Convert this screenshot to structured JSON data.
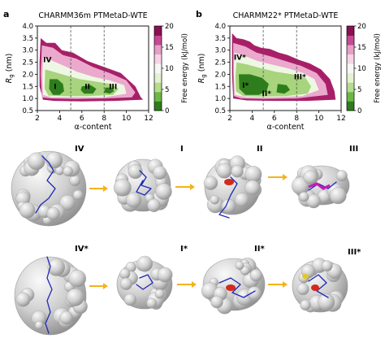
{
  "chart_data": [
    {
      "type": "heatmap",
      "panel_letter": "a",
      "title": "CHARMM36m PTMetaD-WTE",
      "xlabel": "α-content",
      "ylabel_main": "R",
      "ylabel_sub": "g",
      "ylabel_unit": " (nm)",
      "xlim": [
        2,
        12
      ],
      "ylim": [
        0.5,
        4.0
      ],
      "xticks": [
        "2",
        "4",
        "6",
        "8",
        "10",
        "12"
      ],
      "yticks": [
        "0.5",
        "1.0",
        "1.5",
        "2.0",
        "2.5",
        "3.0",
        "3.5",
        "4.0"
      ],
      "dashed_x": [
        5,
        8
      ],
      "state_labels": [
        {
          "text": "IV",
          "x": 2.9,
          "y": 2.5
        },
        {
          "text": "I",
          "x": 3.6,
          "y": 1.4
        },
        {
          "text": "II",
          "x": 6.5,
          "y": 1.4
        },
        {
          "text": "III",
          "x": 8.8,
          "y": 1.4
        }
      ],
      "contours": [
        {
          "level": 20,
          "points": [
            [
              2.3,
              3.5
            ],
            [
              2.8,
              3.3
            ],
            [
              3.6,
              3.3
            ],
            [
              4.2,
              3.0
            ],
            [
              5.2,
              2.9
            ],
            [
              6.5,
              2.55
            ],
            [
              8,
              2.3
            ],
            [
              9.5,
              2.05
            ],
            [
              10.8,
              1.5
            ],
            [
              11.3,
              1.05
            ],
            [
              11.5,
              0.95
            ],
            [
              9,
              0.9
            ],
            [
              6,
              0.88
            ],
            [
              3.5,
              0.9
            ],
            [
              2.5,
              0.95
            ],
            [
              2.2,
              1.5
            ],
            [
              2.2,
              2.5
            ]
          ]
        },
        {
          "level": 15,
          "points": [
            [
              2.4,
              3.2
            ],
            [
              3.4,
              3.1
            ],
            [
              4.3,
              2.8
            ],
            [
              5.5,
              2.65
            ],
            [
              7,
              2.3
            ],
            [
              8.5,
              2.05
            ],
            [
              10,
              1.75
            ],
            [
              10.8,
              1.25
            ],
            [
              10.5,
              1.05
            ],
            [
              8,
              1.0
            ],
            [
              5.5,
              0.98
            ],
            [
              3.2,
              1.0
            ],
            [
              2.4,
              1.05
            ],
            [
              2.3,
              2.0
            ]
          ]
        },
        {
          "level": 10,
          "points": [
            [
              2.5,
              2.7
            ],
            [
              3.4,
              2.55
            ],
            [
              4.4,
              2.35
            ],
            [
              5.6,
              2.1
            ],
            [
              7,
              1.9
            ],
            [
              8.5,
              1.75
            ],
            [
              9.8,
              1.55
            ],
            [
              10,
              1.2
            ],
            [
              8,
              1.05
            ],
            [
              5.5,
              1.05
            ],
            [
              3.3,
              1.05
            ],
            [
              2.5,
              1.15
            ],
            [
              2.45,
              1.9
            ]
          ]
        },
        {
          "level": 5,
          "points": [
            [
              2.7,
              2.2
            ],
            [
              3.5,
              2.1
            ],
            [
              4.6,
              1.95
            ],
            [
              5.8,
              1.8
            ],
            [
              7.2,
              1.7
            ],
            [
              8.6,
              1.6
            ],
            [
              9.3,
              1.4
            ],
            [
              8.8,
              1.15
            ],
            [
              6.5,
              1.1
            ],
            [
              4.5,
              1.1
            ],
            [
              3.0,
              1.12
            ],
            [
              2.65,
              1.4
            ]
          ]
        },
        {
          "level": 0,
          "points": [
            [
              3.1,
              1.8
            ],
            [
              3.8,
              1.8
            ],
            [
              4.3,
              1.6
            ],
            [
              4.4,
              1.3
            ],
            [
              4.0,
              1.15
            ],
            [
              3.4,
              1.15
            ],
            [
              3.05,
              1.4
            ]
          ]
        },
        {
          "level": 0,
          "points": [
            [
              6.0,
              1.5
            ],
            [
              6.8,
              1.55
            ],
            [
              7.3,
              1.4
            ],
            [
              7.0,
              1.2
            ],
            [
              6.2,
              1.2
            ],
            [
              5.9,
              1.35
            ]
          ]
        },
        {
          "level": 0,
          "points": [
            [
              8.1,
              1.45
            ],
            [
              8.7,
              1.45
            ],
            [
              8.9,
              1.3
            ],
            [
              8.5,
              1.2
            ],
            [
              8.0,
              1.25
            ]
          ]
        }
      ],
      "colorbar": {
        "label": "Free energy (kJ/mol)",
        "ticks": [
          "0",
          "5",
          "10",
          "15",
          "20"
        ]
      }
    },
    {
      "type": "heatmap",
      "panel_letter": "b",
      "title": "CHARMM22* PTMetaD-WTE",
      "xlabel": "α-content",
      "ylabel_main": "R",
      "ylabel_sub": "g",
      "ylabel_unit": " (nm)",
      "xlim": [
        2,
        12
      ],
      "ylim": [
        0.5,
        4.0
      ],
      "xticks": [
        "2",
        "4",
        "6",
        "8",
        "10",
        "12"
      ],
      "yticks": [
        "0.5",
        "1.0",
        "1.5",
        "2.0",
        "2.5",
        "3.0",
        "3.5",
        "4.0"
      ],
      "dashed_x": [
        5,
        8
      ],
      "state_labels": [
        {
          "text": "IV*",
          "x": 2.9,
          "y": 2.6
        },
        {
          "text": "I*",
          "x": 3.4,
          "y": 1.45
        },
        {
          "text": "II*",
          "x": 5.3,
          "y": 1.1
        },
        {
          "text": "III*",
          "x": 8.3,
          "y": 1.8
        }
      ],
      "contours": [
        {
          "level": 20,
          "points": [
            [
              2.2,
              3.7
            ],
            [
              2.6,
              3.5
            ],
            [
              3.2,
              3.45
            ],
            [
              3.8,
              3.35
            ],
            [
              4.2,
              3.2
            ],
            [
              4.8,
              3.1
            ],
            [
              5.6,
              3.05
            ],
            [
              6.4,
              2.9
            ],
            [
              7.2,
              2.8
            ],
            [
              8.2,
              2.6
            ],
            [
              9.2,
              2.45
            ],
            [
              10.2,
              2.2
            ],
            [
              11.0,
              1.8
            ],
            [
              11.4,
              1.3
            ],
            [
              11.5,
              0.95
            ],
            [
              9,
              0.9
            ],
            [
              6,
              0.9
            ],
            [
              3.5,
              0.92
            ],
            [
              2.3,
              1.0
            ],
            [
              2.2,
              2.0
            ]
          ]
        },
        {
          "level": 15,
          "points": [
            [
              2.3,
              3.3
            ],
            [
              3.4,
              3.15
            ],
            [
              4.4,
              2.9
            ],
            [
              5.6,
              2.75
            ],
            [
              7,
              2.55
            ],
            [
              8.4,
              2.35
            ],
            [
              9.8,
              2.05
            ],
            [
              10.6,
              1.6
            ],
            [
              10.8,
              1.15
            ],
            [
              8,
              1.0
            ],
            [
              5,
              0.98
            ],
            [
              3,
              1.0
            ],
            [
              2.35,
              1.1
            ],
            [
              2.3,
              2.2
            ]
          ]
        },
        {
          "level": 10,
          "points": [
            [
              2.4,
              2.9
            ],
            [
              3.4,
              2.75
            ],
            [
              4.5,
              2.55
            ],
            [
              5.8,
              2.4
            ],
            [
              7.2,
              2.25
            ],
            [
              8.6,
              2.05
            ],
            [
              9.6,
              1.8
            ],
            [
              10.0,
              1.35
            ],
            [
              8.5,
              1.1
            ],
            [
              6,
              1.05
            ],
            [
              3.5,
              1.05
            ],
            [
              2.45,
              1.15
            ],
            [
              2.35,
              2.0
            ]
          ]
        },
        {
          "level": 5,
          "points": [
            [
              2.6,
              2.5
            ],
            [
              3.6,
              2.4
            ],
            [
              4.8,
              2.25
            ],
            [
              6.2,
              2.1
            ],
            [
              7.6,
              2.0
            ],
            [
              8.8,
              1.85
            ],
            [
              9.3,
              1.5
            ],
            [
              9.0,
              1.2
            ],
            [
              7,
              1.1
            ],
            [
              5,
              1.08
            ],
            [
              3.2,
              1.1
            ],
            [
              2.55,
              1.3
            ],
            [
              2.5,
              1.9
            ]
          ]
        },
        {
          "level": 0,
          "points": [
            [
              2.8,
              2.0
            ],
            [
              3.8,
              2.0
            ],
            [
              4.9,
              1.85
            ],
            [
              5.5,
              1.6
            ],
            [
              5.3,
              1.3
            ],
            [
              4.6,
              1.15
            ],
            [
              3.4,
              1.15
            ],
            [
              2.85,
              1.4
            ]
          ]
        },
        {
          "level": 0,
          "points": [
            [
              6.3,
              1.6
            ],
            [
              7.1,
              1.55
            ],
            [
              7.4,
              1.35
            ],
            [
              6.9,
              1.2
            ],
            [
              6.2,
              1.25
            ]
          ]
        }
      ],
      "colorbar": {
        "label": "Free energy (kJ/mol)",
        "ticks": [
          "0",
          "5",
          "10",
          "15",
          "20"
        ]
      }
    }
  ],
  "colors": {
    "energy_levels": [
      "#2e7d1c",
      "#6bb843",
      "#b5dd8c",
      "#e4f2d2",
      "#f7f7f5",
      "#f6d4e7",
      "#e79fc7",
      "#c74994",
      "#8a1150"
    ],
    "contour_colors": {
      "0": "#2e7d1c",
      "5": "#a7d47c",
      "10": "#eef7e4",
      "15": "#eaa9cd",
      "20": "#a81f68"
    },
    "protein_surface": "#d2d2d2",
    "protein_backbone": "#1f2ab5",
    "arrow": "#f5b21a",
    "highlight_red": "#d42a1e",
    "highlight_magenta": "#c51ab5",
    "highlight_yellow": "#e6c81e"
  },
  "structures": {
    "row1": [
      "IV",
      "I",
      "II",
      "III"
    ],
    "row2": [
      "IV*",
      "I*",
      "II*",
      "III*"
    ]
  }
}
